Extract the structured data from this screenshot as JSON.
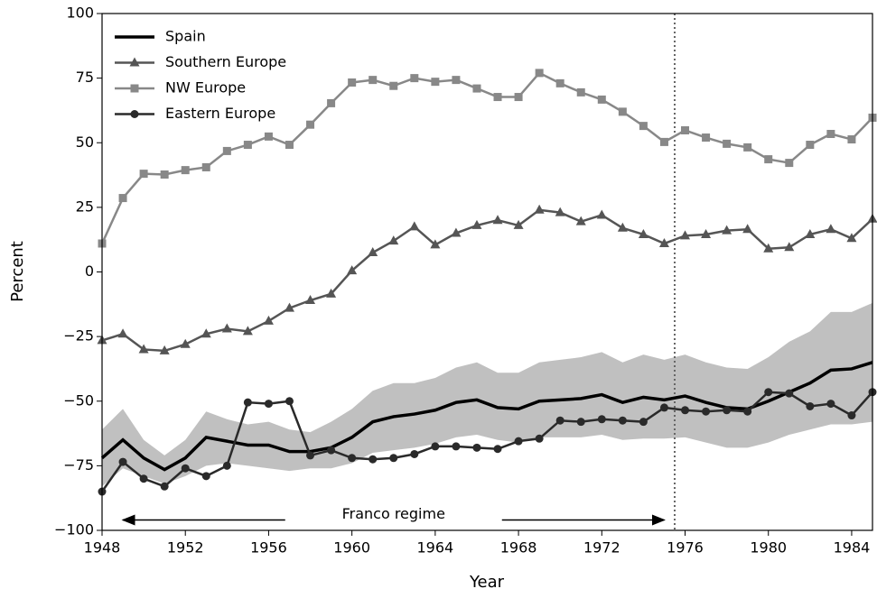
{
  "chart_data": {
    "type": "line",
    "xlabel": "Year",
    "ylabel": "Percent",
    "x": [
      1948,
      1949,
      1950,
      1951,
      1952,
      1953,
      1954,
      1955,
      1956,
      1957,
      1958,
      1959,
      1960,
      1961,
      1962,
      1963,
      1964,
      1965,
      1966,
      1967,
      1968,
      1969,
      1970,
      1971,
      1972,
      1973,
      1974,
      1975,
      1976,
      1977,
      1978,
      1979,
      1980,
      1981,
      1982,
      1983,
      1984,
      1985
    ],
    "series": [
      {
        "name": "Spain",
        "color": "#000000",
        "marker": "none",
        "values": [
          -72,
          -65,
          -72,
          -76.5,
          -72,
          -64,
          -65.5,
          -67,
          -67,
          -69.5,
          -69.5,
          -68,
          -64,
          -58,
          -56,
          -55,
          -53.5,
          -50.5,
          -49.5,
          -52.5,
          -53,
          -50,
          -49.5,
          -49,
          -47.5,
          -50.5,
          -48.5,
          -49.5,
          -48,
          -50.5,
          -52.5,
          -53,
          -50,
          -46.5,
          -43,
          -38,
          -37.5,
          -35
        ]
      },
      {
        "name": "Southern Europe",
        "color": "#555555",
        "marker": "triangle",
        "values": [
          -26.5,
          -24,
          -30,
          -30.5,
          -28,
          -24,
          -22,
          -23,
          -19,
          -14,
          -11,
          -8.5,
          0.5,
          7.5,
          12,
          17.5,
          10.5,
          15,
          18,
          20,
          18,
          24,
          23,
          19.5,
          22,
          17,
          14.5,
          11,
          14,
          14.5,
          16,
          16.5,
          9,
          9.5,
          14.5,
          16.5,
          13,
          20.5
        ]
      },
      {
        "name": "NW Europe",
        "color": "#888888",
        "marker": "square",
        "values": [
          11,
          28.6,
          38,
          37.7,
          39.4,
          40.5,
          46.8,
          49.2,
          52.4,
          49.2,
          57,
          65.3,
          73.3,
          74.3,
          72,
          75,
          73.6,
          74.3,
          71,
          67.7,
          67.7,
          77,
          73,
          69.5,
          66.7,
          62,
          56.5,
          50.3,
          54.8,
          52,
          49.6,
          48.2,
          43.6,
          42.2,
          49.2,
          53.4,
          51.3,
          59.7
        ]
      },
      {
        "name": "Eastern Europe",
        "color": "#2a2a2a",
        "marker": "circle",
        "values": [
          -85,
          -73.5,
          -80,
          -83,
          -76,
          -79,
          -75,
          -50.5,
          -51,
          -50,
          -71,
          -69,
          -72,
          -72.5,
          -72,
          -70.5,
          -67.5,
          -67.5,
          -68,
          -68.5,
          -65.5,
          -64.5,
          -57.5,
          -58,
          -57,
          -57.5,
          -58,
          -52.5,
          -53.5,
          -54,
          -53.5,
          -54,
          -46.5,
          -47,
          -52,
          -51,
          -55.5,
          -46.5
        ]
      }
    ],
    "band": {
      "color": "#c0c0c0",
      "upper": [
        -61,
        -53,
        -65,
        -71,
        -65,
        -54,
        -57,
        -59,
        -58,
        -61,
        -62,
        -58,
        -53,
        -46,
        -43,
        -43,
        -41,
        -37,
        -35,
        -39,
        -39,
        -35,
        -34,
        -33,
        -31,
        -35,
        -32,
        -34,
        -32,
        -35,
        -37,
        -37.5,
        -33,
        -27,
        -23,
        -15.5,
        -15.5,
        -12
      ],
      "lower": [
        -83,
        -76,
        -79,
        -82,
        -79,
        -75,
        -74,
        -75,
        -76,
        -77,
        -76,
        -76,
        -74,
        -70,
        -69,
        -68,
        -66.5,
        -64,
        -63,
        -65,
        -66,
        -64,
        -64,
        -64,
        -63,
        -65,
        -64.5,
        -64.5,
        -64,
        -66,
        -68,
        -68,
        -66,
        -63,
        -61,
        -59,
        -59,
        -58
      ]
    },
    "vline": 1975.5,
    "annotation": {
      "text": "Franco regime",
      "x": [
        1949,
        1975
      ],
      "y": -96
    },
    "xlim": [
      1948,
      1985
    ],
    "ylim": [
      -100,
      100
    ],
    "xticks": [
      1948,
      1952,
      1956,
      1960,
      1964,
      1968,
      1972,
      1976,
      1980,
      1984
    ],
    "yticks": [
      {
        "value": -100,
        "label": "−100"
      },
      {
        "value": -75,
        "label": "−75"
      },
      {
        "value": -50,
        "label": "−50"
      },
      {
        "value": -25,
        "label": "−25"
      },
      0,
      25,
      50,
      75,
      100
    ],
    "legend": "upper left"
  }
}
